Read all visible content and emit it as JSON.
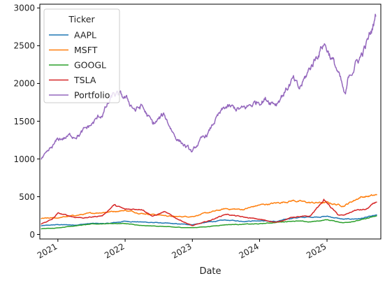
{
  "chart_data": {
    "type": "line",
    "title": "",
    "xlabel": "Date",
    "ylabel": "",
    "xlim": [
      "2020-09-25",
      "2025-10-20"
    ],
    "ylim": [
      -60,
      3050
    ],
    "x_ticks": [
      "2021",
      "2022",
      "2023",
      "2024",
      "2025"
    ],
    "y_ticks": [
      0,
      500,
      1000,
      1500,
      2000,
      2500,
      3000
    ],
    "grid": false,
    "legend": {
      "title": "Ticker",
      "placement": "top-left"
    },
    "series": [
      {
        "name": "AAPL",
        "color": "#1f77b4",
        "points": [
          [
            "2020-10-01",
            115
          ],
          [
            "2021-01-01",
            130
          ],
          [
            "2021-04-01",
            125
          ],
          [
            "2021-07-01",
            145
          ],
          [
            "2021-10-01",
            145
          ],
          [
            "2022-01-01",
            175
          ],
          [
            "2022-04-01",
            165
          ],
          [
            "2022-07-01",
            155
          ],
          [
            "2022-10-01",
            140
          ],
          [
            "2023-01-01",
            130
          ],
          [
            "2023-04-01",
            165
          ],
          [
            "2023-07-01",
            190
          ],
          [
            "2023-10-01",
            175
          ],
          [
            "2024-01-01",
            185
          ],
          [
            "2024-04-01",
            170
          ],
          [
            "2024-07-01",
            220
          ],
          [
            "2024-10-01",
            230
          ],
          [
            "2025-01-01",
            240
          ],
          [
            "2025-04-01",
            200
          ],
          [
            "2025-07-01",
            210
          ],
          [
            "2025-10-01",
            255
          ]
        ]
      },
      {
        "name": "MSFT",
        "color": "#ff7f0e",
        "points": [
          [
            "2020-10-01",
            210
          ],
          [
            "2021-01-01",
            220
          ],
          [
            "2021-04-01",
            250
          ],
          [
            "2021-07-01",
            280
          ],
          [
            "2021-10-01",
            300
          ],
          [
            "2022-01-01",
            320
          ],
          [
            "2022-04-01",
            280
          ],
          [
            "2022-07-01",
            260
          ],
          [
            "2022-10-01",
            235
          ],
          [
            "2023-01-01",
            240
          ],
          [
            "2023-04-01",
            290
          ],
          [
            "2023-07-01",
            340
          ],
          [
            "2023-10-01",
            330
          ],
          [
            "2024-01-01",
            390
          ],
          [
            "2024-04-01",
            415
          ],
          [
            "2024-07-01",
            450
          ],
          [
            "2024-10-01",
            420
          ],
          [
            "2025-01-01",
            420
          ],
          [
            "2025-04-01",
            380
          ],
          [
            "2025-07-01",
            495
          ],
          [
            "2025-10-01",
            520
          ]
        ]
      },
      {
        "name": "GOOGL",
        "color": "#2ca02c",
        "points": [
          [
            "2020-10-01",
            75
          ],
          [
            "2021-01-01",
            88
          ],
          [
            "2021-04-01",
            115
          ],
          [
            "2021-07-01",
            135
          ],
          [
            "2021-10-01",
            145
          ],
          [
            "2022-01-01",
            145
          ],
          [
            "2022-04-01",
            115
          ],
          [
            "2022-07-01",
            110
          ],
          [
            "2022-10-01",
            95
          ],
          [
            "2023-01-01",
            90
          ],
          [
            "2023-04-01",
            105
          ],
          [
            "2023-07-01",
            130
          ],
          [
            "2023-10-01",
            135
          ],
          [
            "2024-01-01",
            140
          ],
          [
            "2024-04-01",
            160
          ],
          [
            "2024-07-01",
            180
          ],
          [
            "2024-10-01",
            165
          ],
          [
            "2025-01-01",
            195
          ],
          [
            "2025-04-01",
            155
          ],
          [
            "2025-07-01",
            190
          ],
          [
            "2025-10-01",
            245
          ]
        ]
      },
      {
        "name": "TSLA",
        "color": "#d62728",
        "points": [
          [
            "2020-10-01",
            140
          ],
          [
            "2020-12-01",
            200
          ],
          [
            "2021-01-01",
            280
          ],
          [
            "2021-04-01",
            230
          ],
          [
            "2021-06-01",
            220
          ],
          [
            "2021-09-01",
            250
          ],
          [
            "2021-11-01",
            390
          ],
          [
            "2022-01-01",
            330
          ],
          [
            "2022-04-01",
            340
          ],
          [
            "2022-06-01",
            240
          ],
          [
            "2022-08-01",
            300
          ],
          [
            "2022-10-01",
            220
          ],
          [
            "2023-01-01",
            115
          ],
          [
            "2023-04-01",
            180
          ],
          [
            "2023-07-01",
            270
          ],
          [
            "2023-10-01",
            230
          ],
          [
            "2024-01-01",
            200
          ],
          [
            "2024-04-01",
            160
          ],
          [
            "2024-07-01",
            230
          ],
          [
            "2024-10-01",
            240
          ],
          [
            "2024-12-15",
            460
          ],
          [
            "2025-03-01",
            260
          ],
          [
            "2025-04-01",
            250
          ],
          [
            "2025-06-01",
            320
          ],
          [
            "2025-08-01",
            330
          ],
          [
            "2025-10-01",
            440
          ]
        ]
      },
      {
        "name": "Portfolio",
        "color": "#9467bd",
        "points": [
          [
            "2020-10-01",
            990
          ],
          [
            "2020-11-01",
            1050
          ],
          [
            "2021-01-01",
            1250
          ],
          [
            "2021-03-01",
            1300
          ],
          [
            "2021-05-01",
            1330
          ],
          [
            "2021-07-01",
            1450
          ],
          [
            "2021-09-01",
            1600
          ],
          [
            "2021-11-01",
            1850
          ],
          [
            "2022-01-01",
            1800
          ],
          [
            "2022-03-01",
            1650
          ],
          [
            "2022-04-01",
            1700
          ],
          [
            "2022-06-01",
            1450
          ],
          [
            "2022-08-01",
            1580
          ],
          [
            "2022-10-01",
            1300
          ],
          [
            "2023-01-01",
            1080
          ],
          [
            "2023-02-01",
            1200
          ],
          [
            "2023-04-01",
            1350
          ],
          [
            "2023-05-01",
            1500
          ],
          [
            "2023-07-01",
            1680
          ],
          [
            "2023-10-01",
            1650
          ],
          [
            "2024-01-01",
            1780
          ],
          [
            "2024-02-01",
            1800
          ],
          [
            "2024-04-01",
            1750
          ],
          [
            "2024-05-01",
            1850
          ],
          [
            "2024-07-01",
            2050
          ],
          [
            "2024-08-01",
            1900
          ],
          [
            "2024-10-01",
            2200
          ],
          [
            "2024-12-15",
            2550
          ],
          [
            "2025-01-15",
            2400
          ],
          [
            "2025-03-01",
            2150
          ],
          [
            "2025-04-10",
            1800
          ],
          [
            "2025-05-01",
            2100
          ],
          [
            "2025-06-01",
            2250
          ],
          [
            "2025-07-01",
            2350
          ],
          [
            "2025-08-01",
            2500
          ],
          [
            "2025-09-01",
            2700
          ],
          [
            "2025-09-25",
            2920
          ]
        ]
      }
    ]
  }
}
